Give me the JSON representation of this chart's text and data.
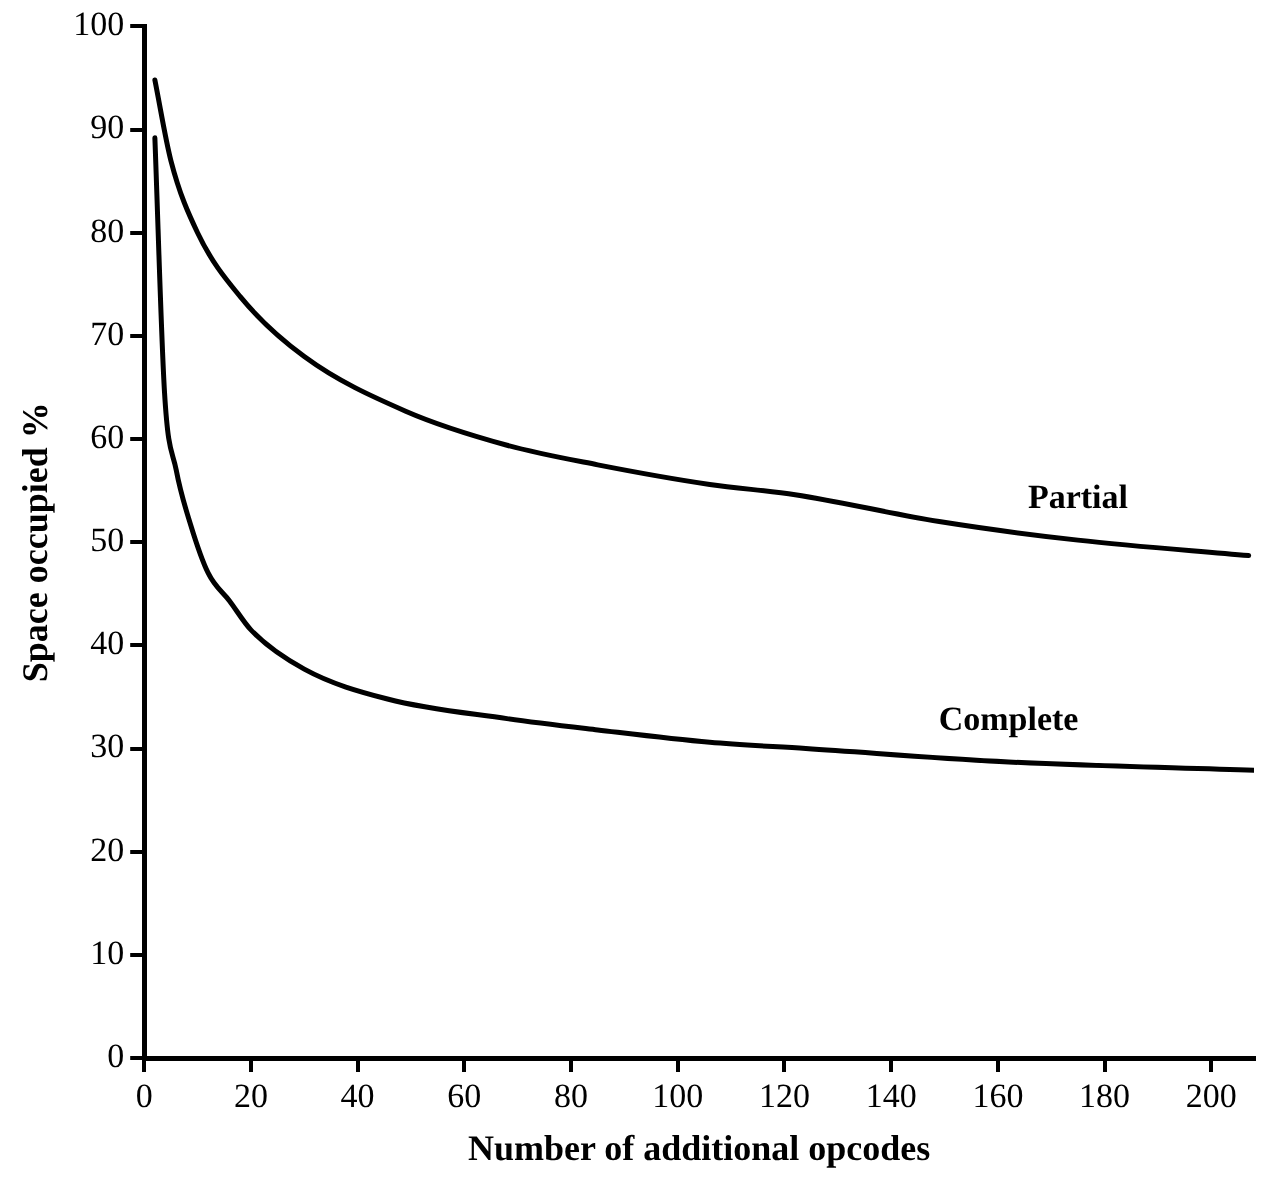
{
  "chart_data": {
    "type": "line",
    "xlabel": "Number of additional opcodes",
    "ylabel": "Space occupied %",
    "xlim": [
      0,
      208
    ],
    "xticks": [
      0,
      20,
      40,
      60,
      80,
      100,
      120,
      140,
      160,
      180,
      200
    ],
    "ylim": [
      0,
      100
    ],
    "yticks": [
      0,
      10,
      20,
      30,
      40,
      50,
      60,
      70,
      80,
      90,
      100
    ],
    "grid": false,
    "legend": false,
    "marker": "none",
    "line_style": "solid",
    "series": [
      {
        "name": "Partial",
        "color": "#000000",
        "x": [
          2,
          5,
          10,
          18,
          30,
          49,
          68,
          85,
          106,
          122,
          149,
          175,
          207
        ],
        "values": [
          94.8,
          87,
          80,
          73.8,
          68,
          62.7,
          59.4,
          57.5,
          55.6,
          54.6,
          52,
          50.2,
          48.7
        ]
      },
      {
        "name": "Complete",
        "color": "#000000",
        "x": [
          2,
          3.8,
          6,
          8.7,
          12,
          16,
          20,
          30,
          45.6,
          68,
          85,
          106,
          124,
          162,
          208
        ],
        "values": [
          89.2,
          64.6,
          57,
          51.7,
          47,
          44.3,
          41.5,
          37.7,
          34.8,
          32.9,
          31.8,
          30.6,
          30,
          28.7,
          27.9
        ]
      }
    ]
  }
}
